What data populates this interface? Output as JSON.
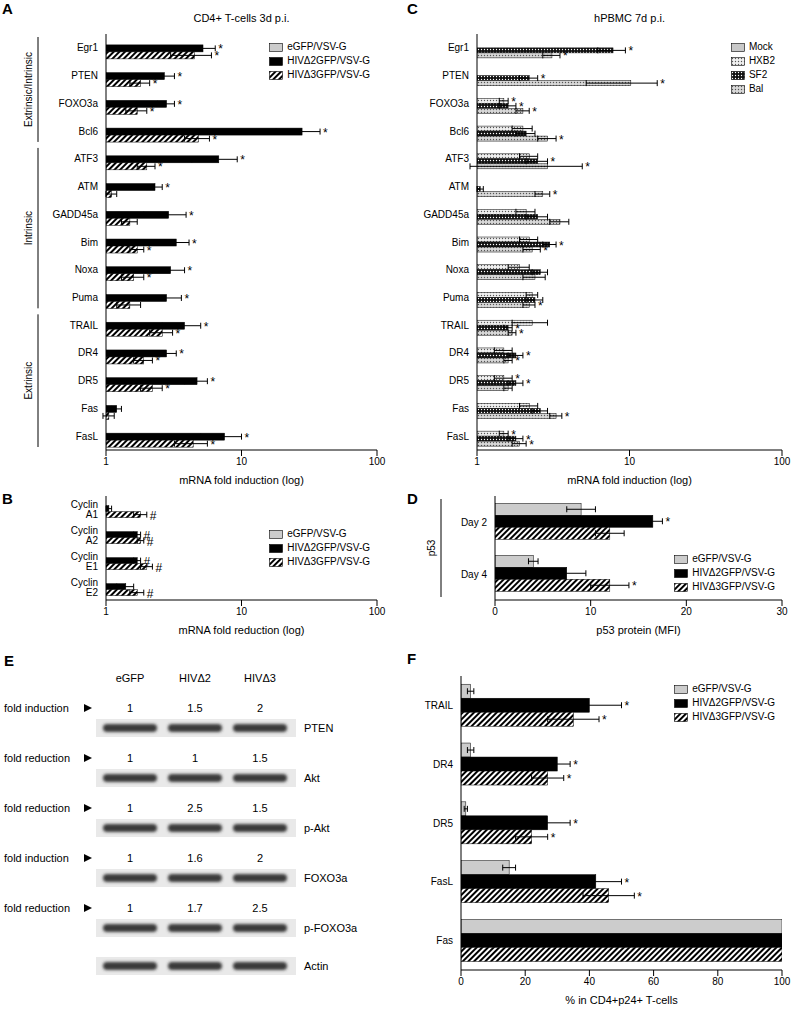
{
  "chart_data": [
    {
      "type": "bar",
      "orientation": "horizontal",
      "panel_label": "A",
      "title": "CD4+ T-cells 3d p.i.",
      "xlabel": "mRNA fold induction (log)",
      "log": "x",
      "xlim": [
        1,
        100
      ],
      "xticks": [
        1,
        10,
        100
      ],
      "legend": "upper right",
      "categories": [
        "Egr1",
        "PTEN",
        "FOXO3a",
        "Bcl6",
        "ATF3",
        "ATM",
        "GADD45a",
        "Bim",
        "Noxa",
        "Puma",
        "TRAIL",
        "DR4",
        "DR5",
        "Fas",
        "FasL"
      ],
      "groups": [
        {
          "label": "Extrinsic/Intrinsic",
          "categories": [
            "Egr1",
            "PTEN",
            "FOXO3a",
            "Bcl6"
          ]
        },
        {
          "label": "Intrinsic",
          "categories": [
            "ATF3",
            "ATM",
            "GADD45a",
            "Bim",
            "Noxa",
            "Puma"
          ]
        },
        {
          "label": "Extrinsic",
          "categories": [
            "TRAIL",
            "DR4",
            "DR5",
            "Fas",
            "FasL"
          ]
        }
      ],
      "series": [
        {
          "name": "eGFP/VSV-G",
          "color": "#cccccc",
          "values": [
            1,
            1,
            1,
            1,
            1,
            1,
            1,
            1,
            1,
            1,
            1,
            1,
            1,
            1,
            1
          ],
          "errors": [
            null,
            null,
            null,
            null,
            null,
            null,
            null,
            null,
            null,
            null,
            null,
            null,
            null,
            null,
            null
          ],
          "marks": [
            null,
            null,
            null,
            null,
            null,
            null,
            null,
            null,
            null,
            null,
            null,
            null,
            null,
            null,
            null
          ]
        },
        {
          "name": "HIVΔ2GFP/VSV-G",
          "color": "#000000",
          "values": [
            5.2,
            2.7,
            2.8,
            28,
            6.8,
            2.3,
            2.9,
            3.3,
            3.0,
            2.8,
            3.8,
            2.8,
            4.7,
            1.2,
            7.5
          ],
          "errors": [
            1.2,
            0.5,
            0.4,
            10,
            2.5,
            0.3,
            1.0,
            0.8,
            0.8,
            0.8,
            1.2,
            0.5,
            0.9,
            0.1,
            2.5
          ],
          "marks": [
            "*",
            "*",
            "*",
            "*",
            "*",
            "*",
            "*",
            "*",
            "*",
            "*",
            "*",
            "*",
            "*",
            null,
            "*"
          ]
        },
        {
          "name": "HIVΔ3GFP/VSV-G",
          "color": "#000000",
          "values": [
            4.5,
            1.8,
            1.7,
            4.8,
            2.0,
            1.1,
            1.5,
            1.7,
            1.6,
            1.5,
            2.6,
            1.9,
            2.2,
            1.05,
            4.4
          ],
          "errors": [
            1.5,
            0.3,
            0.3,
            1.0,
            0.3,
            0.1,
            0.2,
            0.2,
            0.3,
            0.3,
            0.5,
            0.3,
            0.4,
            0.1,
            1.2
          ],
          "marks": [
            "*",
            "*",
            "*",
            "*",
            "*",
            null,
            null,
            "*",
            "*",
            null,
            "*",
            "*",
            "*",
            null,
            "*"
          ]
        }
      ]
    },
    {
      "type": "bar",
      "orientation": "horizontal",
      "panel_label": "B",
      "xlabel": "mRNA fold reduction (log)",
      "log": "x",
      "xlim": [
        1,
        100
      ],
      "xticks": [
        1,
        10,
        100
      ],
      "legend": "right",
      "categories": [
        "Cyclin A1",
        "Cyclin A2",
        "Cyclin E1",
        "Cyclin E2"
      ],
      "series": [
        {
          "name": "eGFP/VSV-G",
          "color": "#cccccc",
          "values": [
            1,
            1,
            1,
            1
          ],
          "errors": [
            null,
            null,
            null,
            null
          ],
          "marks": [
            null,
            null,
            null,
            null
          ]
        },
        {
          "name": "HIVΔ2GFP/VSV-G",
          "color": "#000000",
          "values": [
            1.05,
            1.7,
            1.7,
            1.4
          ],
          "errors": [
            0.05,
            0.1,
            0.1,
            0.2
          ],
          "marks": [
            null,
            "#",
            "#",
            null
          ]
        },
        {
          "name": "HIVΔ3GFP/VSV-G",
          "color": "#000000",
          "values": [
            1.8,
            1.8,
            2.0,
            1.7
          ],
          "errors": [
            0.2,
            0.1,
            0.2,
            0.2
          ],
          "marks": [
            "#",
            "#",
            "#",
            "#"
          ]
        }
      ]
    },
    {
      "type": "bar",
      "orientation": "horizontal",
      "panel_label": "C",
      "title": "hPBMC 7d p.i.",
      "xlabel": "mRNA fold induction (log)",
      "log": "x",
      "xlim": [
        1,
        100
      ],
      "xticks": [
        1,
        10,
        100
      ],
      "legend": "upper right",
      "categories": [
        "Egr1",
        "PTEN",
        "FOXO3a",
        "Bcl6",
        "ATF3",
        "ATM",
        "GADD45a",
        "Bim",
        "Noxa",
        "Puma",
        "TRAIL",
        "DR4",
        "DR5",
        "Fas",
        "FasL"
      ],
      "series": [
        {
          "name": "Mock",
          "color": "#c8c8c8",
          "values": [
            1,
            1,
            1,
            1,
            1,
            1,
            1,
            1,
            1,
            1,
            1,
            1,
            1,
            1,
            1
          ],
          "errors": [
            null,
            null,
            null,
            null,
            null,
            null,
            null,
            null,
            null,
            null,
            null,
            null,
            null,
            null,
            null
          ],
          "marks": [
            null,
            null,
            null,
            null,
            null,
            null,
            null,
            null,
            null,
            null,
            null,
            null,
            null,
            null,
            null
          ]
        },
        {
          "name": "HXB2",
          "color": "#f0f0f0",
          "values": [
            1,
            1,
            1.5,
            2.0,
            2.2,
            1,
            2.1,
            2.2,
            1.9,
            2.3,
            2.3,
            1.5,
            1.5,
            2.2,
            1.5
          ],
          "errors": [
            null,
            null,
            0.1,
            0.3,
            0.3,
            null,
            0.3,
            0.3,
            0.3,
            0.2,
            0.6,
            0.2,
            0.2,
            0.3,
            0.1
          ],
          "marks": [
            null,
            null,
            "*",
            null,
            null,
            null,
            null,
            null,
            null,
            null,
            null,
            null,
            "*",
            null,
            "*"
          ]
        },
        {
          "name": "SF2",
          "color": "#111111",
          "values": [
            7.8,
            2.2,
            1.6,
            2.1,
            2.5,
            1.05,
            2.5,
            3.0,
            2.6,
            2.4,
            1.6,
            1.8,
            1.8,
            2.6,
            1.8
          ],
          "errors": [
            1.6,
            0.3,
            0.2,
            0.3,
            0.4,
            0.05,
            0.4,
            0.3,
            0.3,
            0.3,
            0.1,
            0.2,
            0.2,
            0.3,
            0.2
          ],
          "marks": [
            "*",
            "*",
            "*",
            null,
            "*",
            null,
            null,
            "*",
            null,
            null,
            "*",
            "*",
            "*",
            null,
            "*"
          ]
        },
        {
          "name": "Bal",
          "color": "#d8d8d8",
          "values": [
            3.1,
            10.2,
            2.0,
            2.9,
            2.9,
            2.7,
            3.5,
            2.3,
            2.4,
            2.2,
            1.7,
            1.6,
            1.6,
            3.3,
            1.9
          ],
          "errors": [
            0.4,
            5,
            0.2,
            0.4,
            2.0,
            0.3,
            0.5,
            0.3,
            0.4,
            0.2,
            0.1,
            0.1,
            0.1,
            0.3,
            0.2
          ],
          "marks": [
            "*",
            "*",
            "*",
            "*",
            "*",
            "*",
            null,
            "*",
            null,
            "*",
            "*",
            "*",
            null,
            "*",
            "*"
          ]
        }
      ]
    },
    {
      "type": "bar",
      "orientation": "horizontal",
      "panel_label": "D",
      "xlabel": "p53 protein (MFI)",
      "xlim": [
        0,
        30
      ],
      "xticks": [
        0,
        10,
        20,
        30
      ],
      "legend": "lower right",
      "categories": [
        "Day 2",
        "Day 4"
      ],
      "groups": [
        {
          "label": "p53",
          "categories": [
            "Day 2",
            "Day 4"
          ]
        }
      ],
      "series": [
        {
          "name": "eGFP/VSV-G",
          "color": "#cccccc",
          "values": [
            9,
            4
          ],
          "errors": [
            1.5,
            0.5
          ],
          "marks": [
            null,
            null
          ]
        },
        {
          "name": "HIVΔ2GFP/VSV-G",
          "color": "#000000",
          "values": [
            16.5,
            7.5
          ],
          "errors": [
            1,
            2
          ],
          "marks": [
            "*",
            null
          ]
        },
        {
          "name": "HIVΔ3GFP/VSV-G",
          "color": "#000000",
          "values": [
            12,
            12
          ],
          "errors": [
            1.5,
            2
          ],
          "marks": [
            null,
            "*"
          ]
        }
      ]
    },
    {
      "type": "bar",
      "orientation": "horizontal",
      "panel_label": "F",
      "xlabel": "% in CD4+p24+ T-cells",
      "xlim": [
        0,
        100
      ],
      "xticks": [
        0,
        20,
        40,
        60,
        80,
        100
      ],
      "legend": "upper right",
      "categories": [
        "TRAIL",
        "DR4",
        "DR5",
        "FasL",
        "Fas"
      ],
      "series": [
        {
          "name": "eGFP/VSV-G",
          "color": "#cccccc",
          "values": [
            3,
            3,
            1.5,
            15,
            100
          ],
          "errors": [
            1,
            1,
            0.5,
            2,
            null
          ],
          "marks": [
            null,
            null,
            null,
            null,
            null
          ]
        },
        {
          "name": "HIVΔ2GFP/VSV-G",
          "color": "#000000",
          "values": [
            40,
            30,
            27,
            42,
            100
          ],
          "errors": [
            10,
            4,
            7,
            8,
            null
          ],
          "marks": [
            "*",
            "*",
            "*",
            "*",
            null
          ]
        },
        {
          "name": "HIVΔ3GFP/VSV-G",
          "color": "#000000",
          "values": [
            35,
            27,
            22,
            46,
            100
          ],
          "errors": [
            8,
            5,
            5,
            8,
            null
          ],
          "marks": [
            "*",
            "*",
            "*",
            "*",
            null
          ]
        }
      ]
    }
  ],
  "panel_E": {
    "panel_label": "E",
    "columns": [
      "eGFP",
      "HIVΔ2",
      "HIVΔ3"
    ],
    "rows": [
      {
        "fold_label": "fold induction",
        "fold_values": [
          1,
          1.5,
          2
        ],
        "band": "PTEN"
      },
      {
        "fold_label": "fold reduction",
        "fold_values": [
          1,
          1,
          1.5
        ],
        "band": "Akt"
      },
      {
        "fold_label": "fold reduction",
        "fold_values": [
          1,
          2.5,
          1.5
        ],
        "band": "p-Akt"
      },
      {
        "fold_label": "fold induction",
        "fold_values": [
          1,
          1.6,
          2
        ],
        "band": "FOXO3a"
      },
      {
        "fold_label": "fold reduction",
        "fold_values": [
          1,
          1.7,
          2.5
        ],
        "band": "p-FOXO3a"
      },
      {
        "band": "Actin"
      }
    ]
  }
}
